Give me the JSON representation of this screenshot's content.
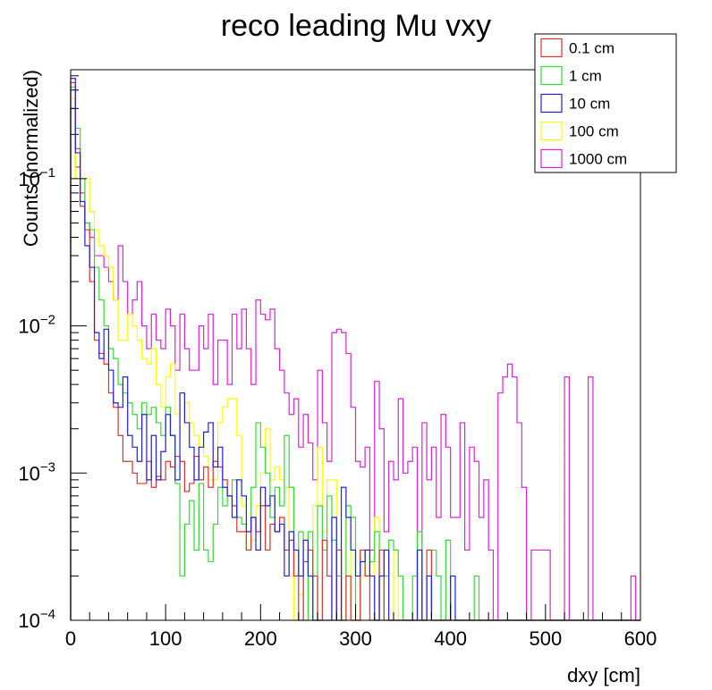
{
  "chart_data": {
    "type": "step-histogram",
    "title": "reco leading Mu vxy",
    "xlabel": "dxy [cm]",
    "ylabel": "Counts (normalized)",
    "xlim": [
      0,
      600
    ],
    "ylim": [
      0.0001,
      0.55
    ],
    "log_y": true,
    "bin_width": 5,
    "grid": false,
    "legend_position": "top-right",
    "x_ticks": [
      "0",
      "100",
      "200",
      "300",
      "400",
      "500",
      "600"
    ],
    "y_ticks": [
      {
        "value": 0.0001,
        "base": "10",
        "exp": "−4"
      },
      {
        "value": 0.001,
        "base": "10",
        "exp": "−3"
      },
      {
        "value": 0.01,
        "base": "10",
        "exp": "−2"
      },
      {
        "value": 0.1,
        "base": "10",
        "exp": "−1"
      }
    ],
    "series": [
      {
        "name": "0.1 cm",
        "color": "#e03030",
        "values": [
          0.45,
          0.16,
          0.065,
          0.045,
          0.02,
          0.008,
          0.0065,
          0.0055,
          0.0035,
          0.0028,
          0.0018,
          0.0012,
          0.0012,
          0.001,
          0.00085,
          0.00085,
          0.0012,
          0.0008,
          0.00095,
          0.0009,
          0.0012,
          0.0011,
          0.0013,
          0.0012,
          0.00075,
          0.00085,
          0.0013,
          0.0009,
          0.0011,
          0.0008,
          0.0012,
          0.0011,
          0.0009,
          0.0007,
          0.0006,
          0.0004,
          0.0004,
          0.0003,
          0.0005,
          0.0004,
          0.0006,
          0.0003,
          0.00045,
          0.0004,
          0.0005,
          0.0003,
          0.00035,
          0.0002,
          0.0001,
          0.00025,
          0.0003,
          0.0002,
          0.0001,
          0.00035,
          0.0002,
          0.0001,
          0.0003,
          0.0001,
          0.0002,
          0.0001,
          0.0001,
          0.0003,
          0.0002,
          0.0001,
          0.0001,
          0.0003,
          0.0001,
          0.0001,
          0.0001,
          0.0001,
          0.0001,
          0.0001,
          0.0001,
          0.0001,
          0.0001,
          0.0003,
          0.0001,
          0.0001,
          0.0001,
          0.0001,
          0.0001,
          0.0001,
          0.0001,
          0.0001,
          0.0001,
          0.0001,
          0.0001,
          0.0001,
          0.0001,
          0.0001,
          0.0001,
          0.0001,
          0.0001,
          0.0001,
          0.0001,
          0.0001,
          0.0001,
          0.0001,
          0.0001,
          0.0001,
          0.0001,
          0.0001,
          0.0001,
          0.0001,
          0.0001,
          0.0001,
          0.0001,
          0.0001,
          0.0001,
          0.0001,
          0.0001,
          0.0001,
          0.0001,
          0.0001,
          0.0001,
          0.0001,
          0.0001,
          0.0001,
          0.0001,
          0.0001
        ]
      },
      {
        "name": "1 cm",
        "color": "#30dd30",
        "values": [
          0.42,
          0.22,
          0.1,
          0.05,
          0.045,
          0.025,
          0.015,
          0.01,
          0.007,
          0.006,
          0.004,
          0.0035,
          0.003,
          0.0025,
          0.002,
          0.003,
          0.0025,
          0.0028,
          0.0022,
          0.0018,
          0.0028,
          0.0018,
          0.00085,
          0.0002,
          0.00045,
          0.00065,
          0.0003,
          0.00085,
          0.0003,
          0.00025,
          0.00045,
          0.0008,
          0.0006,
          0.0007,
          0.0009,
          0.0005,
          0.00045,
          0.0003,
          0.0008,
          0.0022,
          0.0015,
          0.001,
          0.0005,
          0.0008,
          0.0006,
          0.0018,
          0.0008,
          0.0002,
          0.0004,
          0.0001,
          0.0004,
          0.0001,
          0.0006,
          0.0003,
          0.0007,
          0.00035,
          0.0002,
          0.0001,
          0.0006,
          0.0005,
          0.0001,
          0.0003,
          0.0002,
          0.00025,
          0.0004,
          0.0001,
          0.0002,
          0.00035,
          0.0003,
          0.0002,
          0.0001,
          0.0001,
          0.0002,
          0.0004,
          0.0001,
          0.0001,
          0.0003,
          0.0002,
          0.0001,
          0.00035,
          0.0001,
          0.0001,
          0.0001,
          0.0001,
          0.0001,
          0.0002,
          0.0001,
          0.0001,
          0.0001,
          0.0001,
          0.0001,
          0.0001,
          0.0001,
          0.0001,
          0.0001,
          0.0001,
          0.0001,
          0.0001,
          0.0001,
          0.0001,
          0.0001,
          0.0001,
          0.0001,
          0.0001,
          0.0001,
          0.0001,
          0.0001,
          0.0001,
          0.0001,
          0.0001,
          0.0001,
          0.0001,
          0.0001,
          0.0001,
          0.0001,
          0.0001,
          0.0001,
          0.0001,
          0.0001,
          0.0001
        ]
      },
      {
        "name": "10 cm",
        "color": "#2020dd",
        "values": [
          0.48,
          0.15,
          0.07,
          0.035,
          0.025,
          0.009,
          0.006,
          0.0095,
          0.005,
          0.003,
          0.0028,
          0.0045,
          0.0018,
          0.0015,
          0.0012,
          0.0025,
          0.0009,
          0.0018,
          0.0009,
          0.0014,
          0.0025,
          0.0018,
          0.0009,
          0.0035,
          0.0022,
          0.0015,
          0.0009,
          0.0015,
          0.0019,
          0.0022,
          0.0011,
          0.0015,
          0.0008,
          0.0007,
          0.0005,
          0.0009,
          0.0007,
          0.0004,
          0.0005,
          0.0003,
          0.0008,
          0.0006,
          0.0007,
          0.0004,
          0.00045,
          0.0002,
          0.0004,
          0.0003,
          0.0002,
          0.00035,
          0.0002,
          0.0001,
          0.0001,
          0.0001,
          0.0001,
          0.0005,
          0.0001,
          0.0008,
          0.0005,
          0.0003,
          0.0002,
          0.00025,
          0.0003,
          0.0002,
          0.0001,
          0.0002,
          0.0003,
          0.0001,
          0.0001,
          0.0001,
          0.0001,
          0.0001,
          0.0001,
          0.0003,
          0.0001,
          0.0002,
          0.0001,
          0.0001,
          0.0001,
          0.0001,
          0.0002,
          0.0001,
          0.0001,
          0.0001,
          0.0001,
          0.0001,
          0.0001,
          0.0001,
          0.0001,
          0.0001,
          0.0001,
          0.0001,
          0.0001,
          0.0001,
          0.0001,
          0.0001,
          0.0001,
          0.0001,
          0.0001,
          0.0001,
          0.0001,
          0.0001,
          0.0001,
          0.0001,
          0.0001,
          0.0001,
          0.0001,
          0.0001,
          0.0001,
          0.0001,
          0.0001,
          0.0001,
          0.0001,
          0.0001,
          0.0001,
          0.0001,
          0.0001,
          0.0001,
          0.0001,
          0.0001
        ]
      },
      {
        "name": "100 cm",
        "color": "#ffff00",
        "values": [
          0.35,
          0.1,
          0.1,
          0.1,
          0.06,
          0.045,
          0.035,
          0.03,
          0.025,
          0.015,
          0.008,
          0.008,
          0.012,
          0.01,
          0.008,
          0.006,
          0.0055,
          0.007,
          0.004,
          0.0028,
          0.0045,
          0.0055,
          0.0025,
          0.0035,
          0.003,
          0.0022,
          0.0018,
          0.0015,
          0.0013,
          0.0009,
          0.0009,
          0.0022,
          0.0028,
          0.0032,
          0.0032,
          0.0018,
          0.0006,
          0.0003,
          0.00035,
          0.0006,
          0.001,
          0.002,
          0.0009,
          0.0011,
          0.0009,
          0.0008,
          0.0002,
          0.0001,
          0.00015,
          0.0003,
          0.0001,
          0.0006,
          0.0015,
          0.0004,
          0.0009,
          0.0009,
          0.0003,
          0.0001,
          0.0005,
          0.0001,
          0.0001,
          0.0002,
          0.0003,
          0.0002,
          0.0005,
          0.0002,
          0.0001,
          0.0001,
          0.0003,
          0.0001,
          0.0001,
          0.0001,
          0.0001,
          0.0001,
          0.0001,
          0.0001,
          0.0001,
          0.0001,
          0.0001,
          0.0001,
          0.0001,
          0.0001,
          0.0001,
          0.0001,
          0.0001,
          0.0001,
          0.0001,
          0.0001,
          0.0001,
          0.0001,
          0.0001,
          0.0001,
          0.0001,
          0.0001,
          0.0001,
          0.0001,
          0.0001,
          0.0001,
          0.0001,
          0.0001,
          0.0001,
          0.0001,
          0.0001,
          0.0001,
          0.0001,
          0.0001,
          0.0001,
          0.0001,
          0.0001,
          0.0001,
          0.0001,
          0.0001,
          0.0001,
          0.0001,
          0.0001,
          0.0001,
          0.0001,
          0.0001,
          0.0001,
          0.0001
        ]
      },
      {
        "name": "1000 cm",
        "color": "#dd22dd",
        "values": [
          0.3,
          0.12,
          0.08,
          0.05,
          0.04,
          0.03,
          0.03,
          0.025,
          0.02,
          0.015,
          0.035,
          0.02,
          0.012,
          0.015,
          0.02,
          0.01,
          0.007,
          0.012,
          0.008,
          0.007,
          0.013,
          0.01,
          0.005,
          0.012,
          0.007,
          0.005,
          0.005,
          0.01,
          0.007,
          0.012,
          0.004,
          0.008,
          0.008,
          0.004,
          0.012,
          0.007,
          0.013,
          0.007,
          0.004,
          0.015,
          0.012,
          0.011,
          0.013,
          0.007,
          0.005,
          0.0035,
          0.0025,
          0.0032,
          0.0015,
          0.0025,
          0.0016,
          0.0009,
          0.005,
          0.0022,
          0.0012,
          0.009,
          0.0095,
          0.009,
          0.0065,
          0.0028,
          0.0012,
          0.0011,
          0.0015,
          0.0003,
          0.0042,
          0.002,
          0.0004,
          0.0012,
          0.0009,
          0.0032,
          0.001,
          0.0012,
          0.0015,
          0.0001,
          0.0022,
          0.0009,
          0.0015,
          0.0005,
          0.0025,
          0.0015,
          0.0005,
          0.0005,
          0.0022,
          0.0003,
          0.0015,
          0.0012,
          0.0005,
          0.0009,
          0.0003,
          0.0001,
          0.0035,
          0.0045,
          0.0055,
          0.0045,
          0.0022,
          0.0008,
          0.0001,
          0.0003,
          0.0003,
          0.0003,
          0.0003,
          0.0001,
          0.0001,
          0.0001,
          0.0045,
          0.0001,
          0.0001,
          0.0001,
          0.0001,
          0.0045,
          0.0001,
          0.0001,
          0.0001,
          0.0001,
          0.0001,
          0.0001,
          0.0001,
          0.0001,
          0.0002,
          0.0001
        ]
      }
    ]
  }
}
